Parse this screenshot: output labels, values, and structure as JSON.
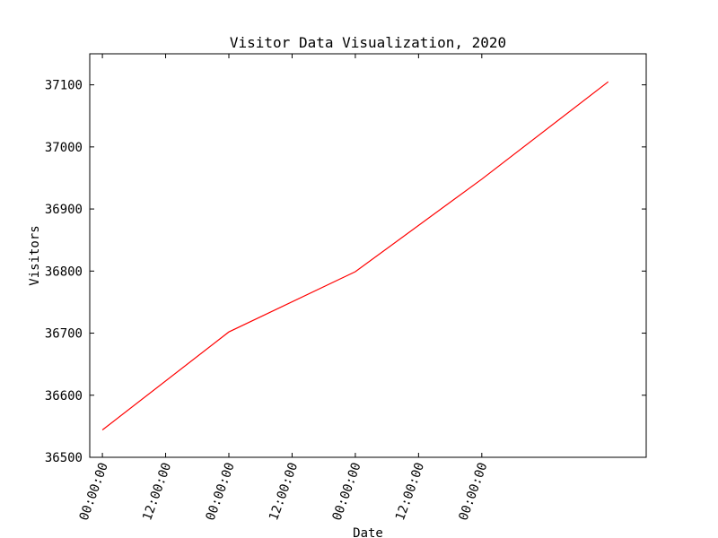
{
  "chart_data": {
    "type": "line",
    "title": "Visitor Data Visualization, 2020",
    "xlabel": "Date",
    "ylabel": "Visitors",
    "x_tick_labels": [
      "00:00:00",
      "12:00:00",
      "00:00:00",
      "12:00:00",
      "00:00:00",
      "12:00:00",
      "00:00:00"
    ],
    "x_tick_rotation": "70°",
    "y_ticks": [
      36500,
      36600,
      36700,
      36800,
      36900,
      37000,
      37100
    ],
    "xlim": [
      -0.1,
      4.3
    ],
    "ylim": [
      36500,
      37150
    ],
    "grid": false,
    "legend": null,
    "series": [
      {
        "color": "#ff0000",
        "x": [
          0,
          1,
          2,
          3,
          4
        ],
        "values": [
          36544,
          36702,
          36799,
          36948,
          37105
        ]
      }
    ]
  }
}
